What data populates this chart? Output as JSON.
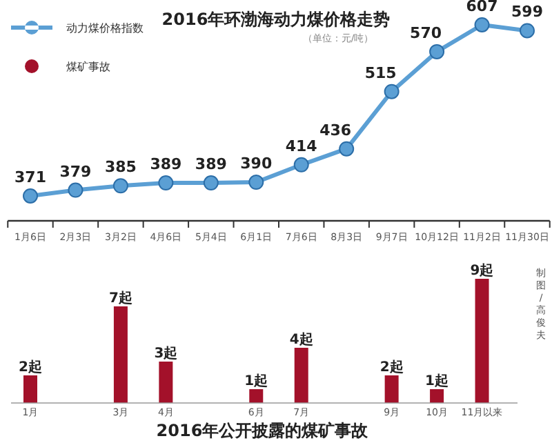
{
  "chart_data": [
    {
      "type": "line",
      "title": "2016年环渤海动力煤价格走势",
      "subtitle": "（单位：元/吨）",
      "categories": [
        "1月6日",
        "2月3日",
        "3月2日",
        "4月6日",
        "5月4日",
        "6月1日",
        "7月6日",
        "8月3日",
        "9月7日",
        "10月12日",
        "11月2日",
        "11月30日"
      ],
      "series": [
        {
          "name": "动力煤价格指数",
          "color": "#5b9fd4",
          "values": [
            371,
            379,
            385,
            389,
            389,
            390,
            414,
            436,
            515,
            570,
            607,
            599
          ]
        }
      ],
      "data_labels": true,
      "marker": "circle",
      "legend": "top left"
    },
    {
      "type": "bar",
      "title": "2016年公开披露的煤矿事故",
      "categories": [
        "1月",
        null,
        "3月",
        "4月",
        null,
        "6月",
        "7月",
        null,
        "9月",
        "10月",
        "11月以来",
        null
      ],
      "series": [
        {
          "name": "煤矿事故",
          "color": "#a3112a",
          "values": [
            2,
            null,
            7,
            3,
            null,
            1,
            4,
            null,
            2,
            1,
            9,
            null
          ],
          "value_labels": [
            "2起",
            null,
            "7起",
            "3起",
            null,
            "1起",
            "4起",
            null,
            "2起",
            "1起",
            "9起",
            null
          ]
        }
      ],
      "legend": "top left",
      "annotations": [
        "制图/高俊夫"
      ]
    }
  ]
}
